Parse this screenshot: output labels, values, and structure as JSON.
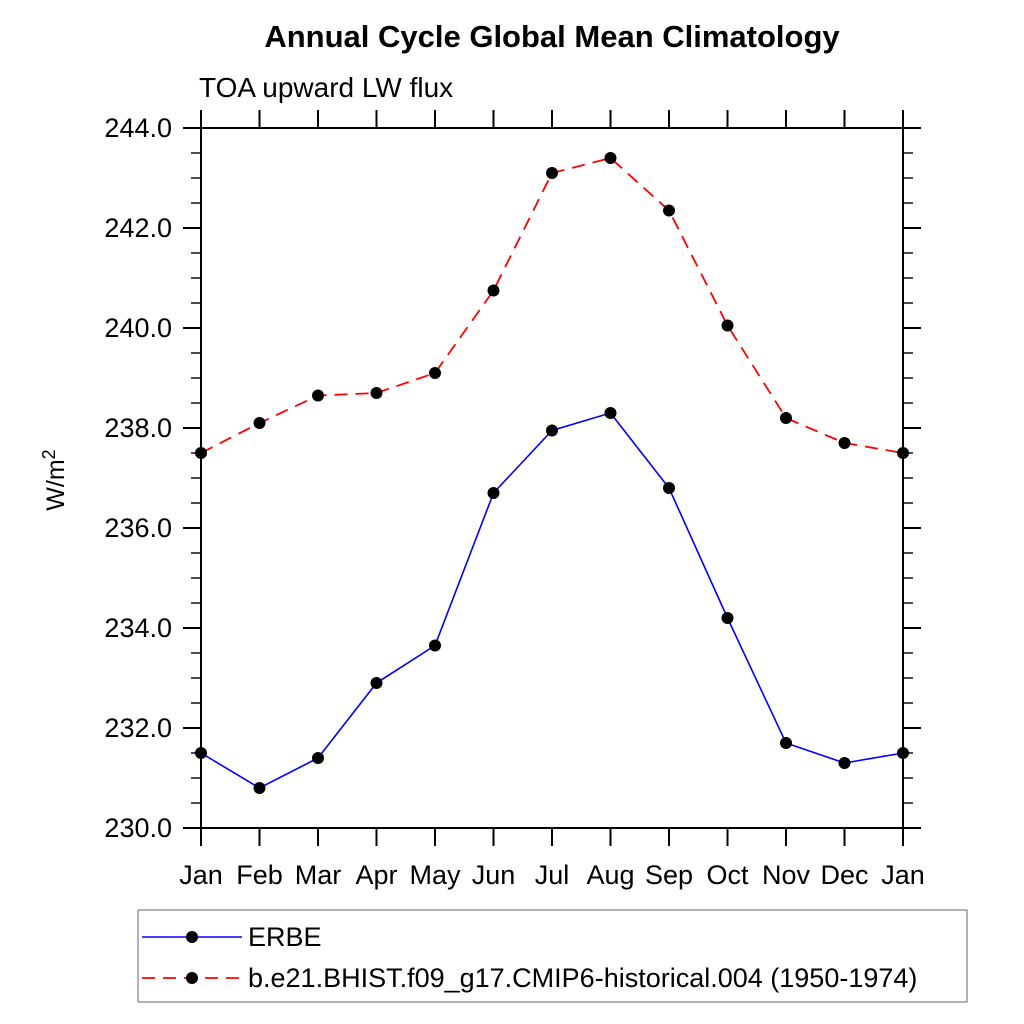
{
  "chart_data": {
    "type": "line",
    "title": "Annual Cycle Global Mean Climatology",
    "subtitle": "TOA upward LW flux",
    "ylabel_base": "W/m",
    "ylabel_sup": "2",
    "categories": [
      "Jan",
      "Feb",
      "Mar",
      "Apr",
      "May",
      "Jun",
      "Jul",
      "Aug",
      "Sep",
      "Oct",
      "Nov",
      "Dec",
      "Jan"
    ],
    "ylim": [
      230.0,
      244.0
    ],
    "ytick_major": 2.0,
    "ytick_minor": 0.5,
    "ytick_decimals": 1,
    "grid": false,
    "legend_position": "bottom-left",
    "axis_color": "#000000",
    "marker_color": "#000000",
    "legend_border_color": "#999999",
    "series": [
      {
        "name": "ERBE",
        "line_color": "#0000ff",
        "line_style": "solid",
        "values": [
          231.5,
          230.8,
          231.4,
          232.9,
          233.65,
          236.7,
          237.95,
          238.3,
          236.8,
          234.2,
          231.7,
          231.3,
          231.5
        ]
      },
      {
        "name": "b.e21.BHIST.f09_g17.CMIP6-historical.004 (1950-1974)",
        "line_color": "#ff0000",
        "line_style": "dashed",
        "values": [
          237.5,
          238.1,
          238.65,
          238.7,
          239.1,
          240.75,
          243.1,
          243.4,
          242.35,
          240.05,
          238.2,
          237.7,
          237.5
        ]
      }
    ]
  }
}
